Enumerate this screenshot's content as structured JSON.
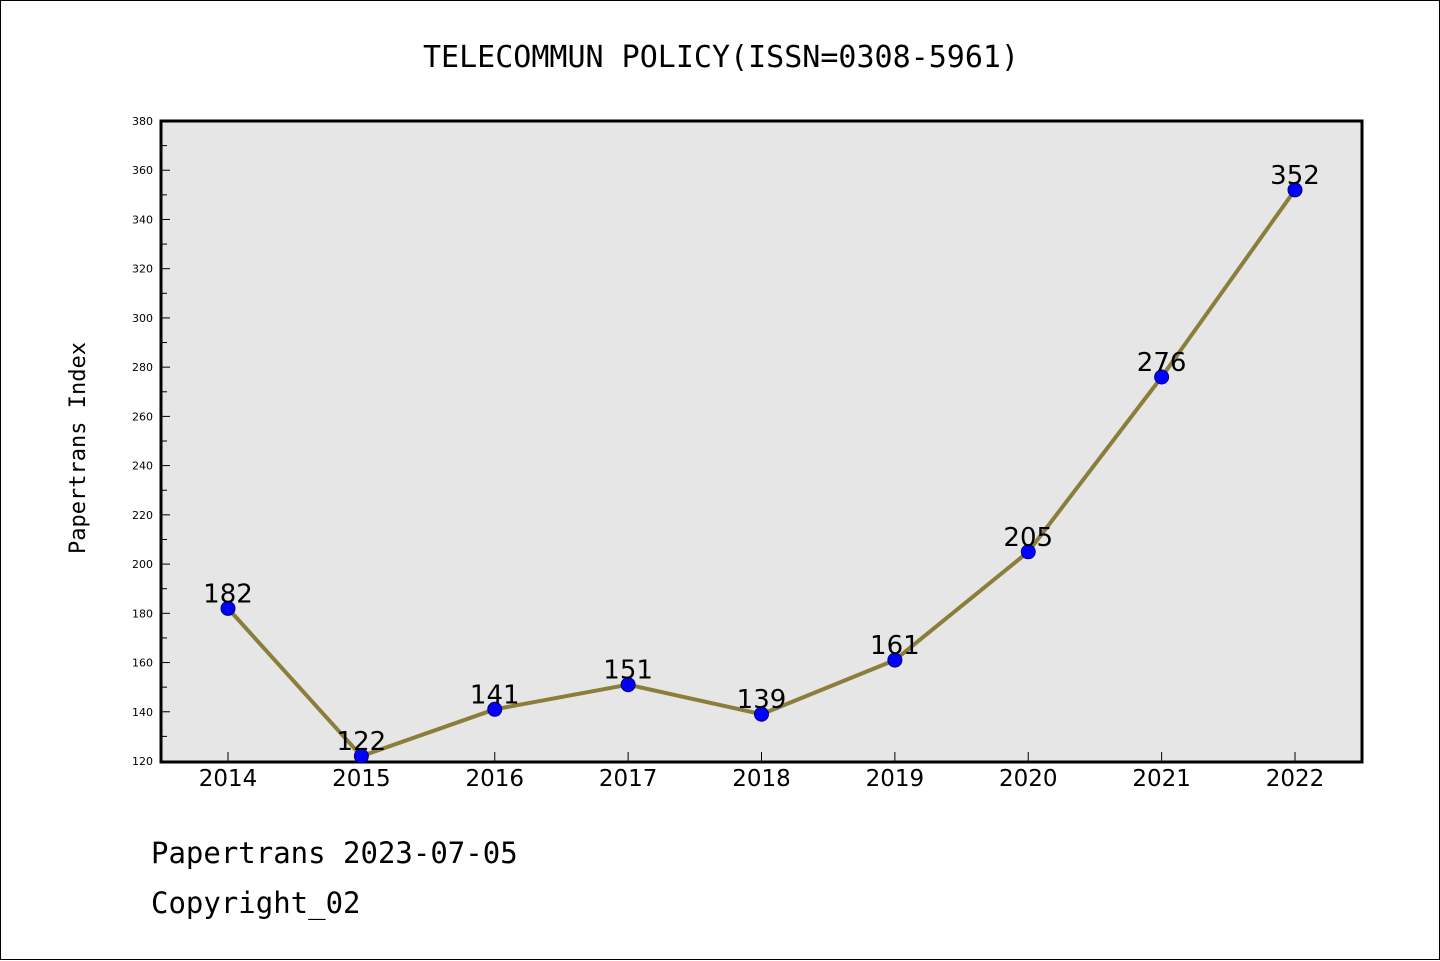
{
  "chart_data": {
    "type": "line",
    "title": "TELECOMMUN POLICY(ISSN=0308-5961)",
    "xlabel": "",
    "ylabel": "Papertrans Index",
    "categories": [
      "2014",
      "2015",
      "2016",
      "2017",
      "2018",
      "2019",
      "2020",
      "2021",
      "2022"
    ],
    "series": [
      {
        "values": [
          182,
          122,
          141,
          151,
          139,
          161,
          205,
          276,
          352
        ]
      }
    ],
    "ylim": [
      120,
      380
    ],
    "yticks": [
      120,
      140,
      160,
      180,
      200,
      220,
      240,
      260,
      280,
      300,
      320,
      340,
      360,
      380
    ],
    "data_labels": [
      "182",
      "122",
      "141",
      "151",
      "139",
      "161",
      "205",
      "276",
      "352"
    ],
    "grid": false,
    "colors": {
      "line": "#8b7d3a",
      "marker": "#0000ff",
      "plot_background": "#e6e6e6"
    }
  },
  "footer": {
    "line1": "Papertrans 2023-07-05",
    "line2": "Copyright_02"
  }
}
